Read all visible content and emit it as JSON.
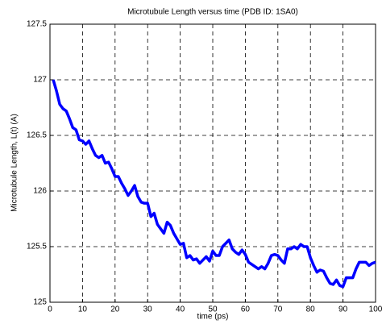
{
  "chart_data": {
    "type": "line",
    "title": "Microtubule Length versus time (PDB ID: 1SA0)",
    "x_label": "time (ps)",
    "y_label": "Microtubule Length, L(t) (A)",
    "x": [
      1,
      2,
      3,
      4,
      5,
      6,
      7,
      8,
      9,
      10,
      11,
      12,
      13,
      14,
      15,
      16,
      17,
      18,
      19,
      20,
      21,
      22,
      23,
      24,
      25,
      26,
      27,
      28,
      29,
      30,
      31,
      32,
      33,
      34,
      35,
      36,
      37,
      38,
      39,
      40,
      41,
      42,
      43,
      44,
      45,
      46,
      47,
      48,
      49,
      50,
      51,
      52,
      53,
      54,
      55,
      56,
      57,
      58,
      59,
      60,
      61,
      62,
      63,
      64,
      65,
      66,
      67,
      68,
      69,
      70,
      71,
      72,
      73,
      74,
      75,
      76,
      77,
      78,
      79,
      80,
      81,
      82,
      83,
      84,
      85,
      86,
      87,
      88,
      89,
      90,
      91,
      92,
      93,
      94,
      95,
      96,
      97,
      98,
      99,
      100
    ],
    "series": [
      {
        "name": "L(t)",
        "color": "#0000ff",
        "values": [
          127.0,
          126.9,
          126.78,
          126.74,
          126.72,
          126.65,
          126.57,
          126.55,
          126.46,
          126.45,
          126.42,
          126.45,
          126.38,
          126.32,
          126.3,
          126.32,
          126.25,
          126.26,
          126.2,
          126.13,
          126.13,
          126.07,
          126.02,
          125.96,
          126.0,
          126.05,
          125.95,
          125.9,
          125.89,
          125.89,
          125.77,
          125.8,
          125.7,
          125.66,
          125.62,
          125.72,
          125.69,
          125.62,
          125.57,
          125.52,
          125.53,
          125.4,
          125.42,
          125.38,
          125.39,
          125.35,
          125.38,
          125.41,
          125.37,
          125.46,
          125.42,
          125.42,
          125.5,
          125.53,
          125.56,
          125.48,
          125.45,
          125.43,
          125.47,
          125.43,
          125.36,
          125.34,
          125.32,
          125.3,
          125.32,
          125.3,
          125.35,
          125.42,
          125.43,
          125.42,
          125.38,
          125.35,
          125.48,
          125.48,
          125.5,
          125.48,
          125.52,
          125.5,
          125.5,
          125.4,
          125.33,
          125.27,
          125.29,
          125.28,
          125.22,
          125.17,
          125.16,
          125.2,
          125.15,
          125.14,
          125.22,
          125.22,
          125.22,
          125.3,
          125.36,
          125.36,
          125.36,
          125.33,
          125.35,
          125.36
        ]
      }
    ],
    "xlim": [
      0,
      100
    ],
    "xticks": [
      0,
      10,
      20,
      30,
      40,
      50,
      60,
      70,
      80,
      90,
      100
    ],
    "ylim": [
      125,
      127.5
    ],
    "yticks": [
      125,
      125.5,
      126,
      126.5,
      127,
      127.5
    ],
    "grid": true
  }
}
